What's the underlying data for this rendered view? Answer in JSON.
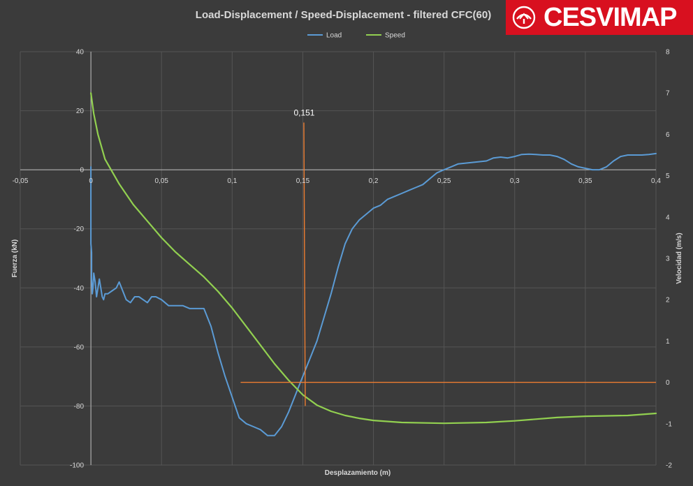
{
  "brand": {
    "logo_text": "CESVIMAP",
    "logo_icon": "cesvimap-emblem-icon",
    "logo_color": "#d8101f"
  },
  "chart_data": {
    "type": "line",
    "title": "Load-Displacement / Speed-Displacement - filtered CFC(60)",
    "xlabel": "Desplazamiento (m)",
    "ylabel_left": "Fuerza (kN)",
    "ylabel_right": "Velocidad (m/s)",
    "xlim": [
      -0.05,
      0.4
    ],
    "ylim_left": [
      -100,
      40
    ],
    "ylim_right": [
      -2,
      8
    ],
    "x_ticks": [
      "-0,05",
      "0",
      "0,05",
      "0,1",
      "0,15",
      "0,2",
      "0,25",
      "0,3",
      "0,35",
      "0,4"
    ],
    "y_left_ticks": [
      "-100",
      "-80",
      "-60",
      "-40",
      "-20",
      "0",
      "20",
      "40"
    ],
    "y_right_ticks": [
      "-2",
      "-1",
      "0",
      "1",
      "2",
      "3",
      "4",
      "5",
      "6",
      "7",
      "8"
    ],
    "grid": true,
    "legend_position": "top-center",
    "colors": {
      "background": "#3b3b3b",
      "grid": "#555555",
      "text": "#d9d9d9",
      "load": "#5b9bd5",
      "speed": "#92d050",
      "marker": "#ed7d31"
    },
    "series": [
      {
        "name": "Load",
        "axis": "left",
        "x": [
          0,
          0,
          0.0005,
          0.0005,
          0.001,
          0.0015,
          0.002,
          0.003,
          0.004,
          0.005,
          0.006,
          0.007,
          0.008,
          0.009,
          0.01,
          0.012,
          0.015,
          0.018,
          0.02,
          0.025,
          0.028,
          0.031,
          0.034,
          0.037,
          0.04,
          0.043,
          0.046,
          0.05,
          0.055,
          0.06,
          0.065,
          0.07,
          0.075,
          0.08,
          0.085,
          0.09,
          0.095,
          0.1,
          0.105,
          0.11,
          0.115,
          0.12,
          0.125,
          0.13,
          0.135,
          0.14,
          0.145,
          0.15,
          0.155,
          0.16,
          0.165,
          0.17,
          0.175,
          0.18,
          0.185,
          0.19,
          0.195,
          0.2,
          0.205,
          0.21,
          0.215,
          0.22,
          0.225,
          0.23,
          0.235,
          0.24,
          0.245,
          0.25,
          0.255,
          0.26,
          0.27,
          0.28,
          0.285,
          0.29,
          0.295,
          0.3,
          0.305,
          0.31,
          0.315,
          0.32,
          0.325,
          0.33,
          0.335,
          0.34,
          0.345,
          0.35,
          0.355,
          0.36,
          0.365,
          0.37,
          0.375,
          0.38,
          0.385,
          0.39,
          0.395,
          0.4
        ],
        "y": [
          1,
          -25,
          -28,
          -37,
          -42,
          -40,
          -35,
          -38,
          -43,
          -40,
          -37,
          -40,
          -43,
          -44,
          -42,
          -42,
          -41,
          -40,
          -38,
          -44,
          -45,
          -43,
          -43,
          -44,
          -45,
          -43,
          -43,
          -44,
          -46,
          -46,
          -46,
          -47,
          -47,
          -47,
          -53,
          -62,
          -70,
          -77,
          -84,
          -86,
          -87,
          -88,
          -90,
          -90,
          -87,
          -82,
          -76,
          -70,
          -64,
          -58,
          -50,
          -42,
          -33,
          -25,
          -20,
          -17,
          -15,
          -13,
          -12,
          -10,
          -9,
          -8,
          -7,
          -6,
          -5,
          -3,
          -1,
          0,
          1,
          2,
          2.5,
          3,
          4,
          4.3,
          4,
          4.5,
          5.2,
          5.3,
          5.2,
          5,
          5,
          4.5,
          3.5,
          2,
          1,
          0.5,
          0,
          0,
          1,
          3,
          4.5,
          5,
          5,
          5,
          5.2,
          5.5
        ]
      },
      {
        "name": "Speed",
        "axis": "right",
        "x": [
          0,
          0.002,
          0.005,
          0.01,
          0.02,
          0.03,
          0.04,
          0.05,
          0.06,
          0.07,
          0.08,
          0.09,
          0.1,
          0.11,
          0.12,
          0.13,
          0.14,
          0.15,
          0.16,
          0.17,
          0.18,
          0.19,
          0.2,
          0.22,
          0.25,
          0.28,
          0.3,
          0.33,
          0.35,
          0.38,
          0.4
        ],
        "y": [
          7.0,
          6.5,
          6.0,
          5.4,
          4.8,
          4.3,
          3.9,
          3.5,
          3.15,
          2.85,
          2.55,
          2.2,
          1.8,
          1.35,
          0.9,
          0.45,
          0.05,
          -0.3,
          -0.55,
          -0.7,
          -0.8,
          -0.87,
          -0.92,
          -0.97,
          -0.99,
          -0.97,
          -0.93,
          -0.85,
          -0.82,
          -0.8,
          -0.75
        ]
      }
    ],
    "annotations": [
      {
        "label": "0,151",
        "type": "vertical-line",
        "x": 0.151,
        "y_from": -80,
        "y_to": 16
      },
      {
        "type": "horizontal-line",
        "axis": "right",
        "y": 0,
        "x_from": 0.106,
        "x_to": 0.4
      }
    ]
  }
}
